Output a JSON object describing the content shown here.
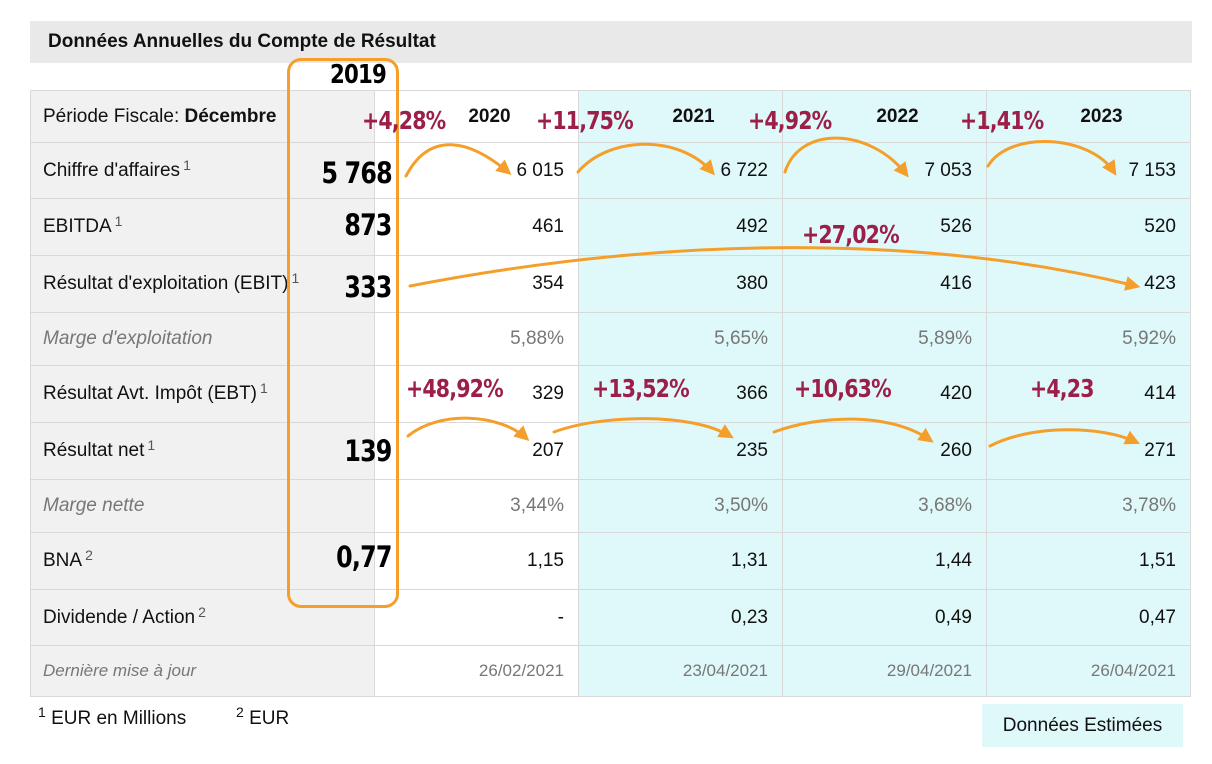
{
  "title": "Données Annuelles du Compte de Résultat",
  "header": {
    "period_label": "Période Fiscale: ",
    "period_value": "Décembre",
    "years": [
      "2020",
      "2021",
      "2022",
      "2023"
    ]
  },
  "rows": [
    {
      "label": "Chiffre d'affaires",
      "note": "1",
      "values": [
        "6 015",
        "6 722",
        "7 053",
        "7 153"
      ],
      "style": "normal"
    },
    {
      "label": "EBITDA",
      "note": "1",
      "values": [
        "461",
        "492",
        "526",
        "520"
      ],
      "style": "normal"
    },
    {
      "label": "Résultat d'exploitation (EBIT)",
      "note": "1",
      "values": [
        "354",
        "380",
        "416",
        "423"
      ],
      "style": "normal"
    },
    {
      "label": "Marge d'exploitation",
      "note": "",
      "values": [
        "5,88%",
        "5,65%",
        "5,89%",
        "5,92%"
      ],
      "style": "italic"
    },
    {
      "label": "Résultat Avt. Impôt (EBT)",
      "note": "1",
      "values": [
        "329",
        "366",
        "420",
        "414"
      ],
      "style": "normal"
    },
    {
      "label": "Résultat net",
      "note": "1",
      "values": [
        "207",
        "235",
        "260",
        "271"
      ],
      "style": "normal"
    },
    {
      "label": "Marge nette",
      "note": "",
      "values": [
        "3,44%",
        "3,50%",
        "3,68%",
        "3,78%"
      ],
      "style": "italic"
    },
    {
      "label": "BNA",
      "note": "2",
      "values": [
        "1,15",
        "1,31",
        "1,44",
        "1,51"
      ],
      "style": "normal"
    },
    {
      "label": "Dividende / Action",
      "note": "2",
      "values": [
        "-",
        "0,23",
        "0,49",
        "0,47"
      ],
      "style": "normal"
    },
    {
      "label": "Dernière mise à jour",
      "note": "",
      "values": [
        "26/02/2021",
        "23/04/2021",
        "29/04/2021",
        "26/04/2021"
      ],
      "style": "update"
    }
  ],
  "footnotes": {
    "n1_mark": "1",
    "n1_text": "EUR en Millions",
    "n2_mark": "2",
    "n2_text": "EUR"
  },
  "estimated_label": "Données Estimées",
  "annotations": {
    "year_2019": "2019",
    "values_2019": {
      "ca": "5 768",
      "ebitda": "873",
      "ebit": "333",
      "net": "139",
      "bna": "0,77"
    },
    "ca_growth": [
      "+4,28%",
      "+11,75%",
      "+4,92%",
      "+1,41%"
    ],
    "ebit_growth": "+27,02%",
    "net_growth": [
      "+48,92%",
      "+13,52%",
      "+10,63%",
      "+4,23"
    ]
  },
  "colors": {
    "estimate_bg": "#dff8f9",
    "label_bg": "#f1f1f1",
    "annotation_orange": "#f49f2b",
    "annotation_red": "#9b1f48"
  }
}
